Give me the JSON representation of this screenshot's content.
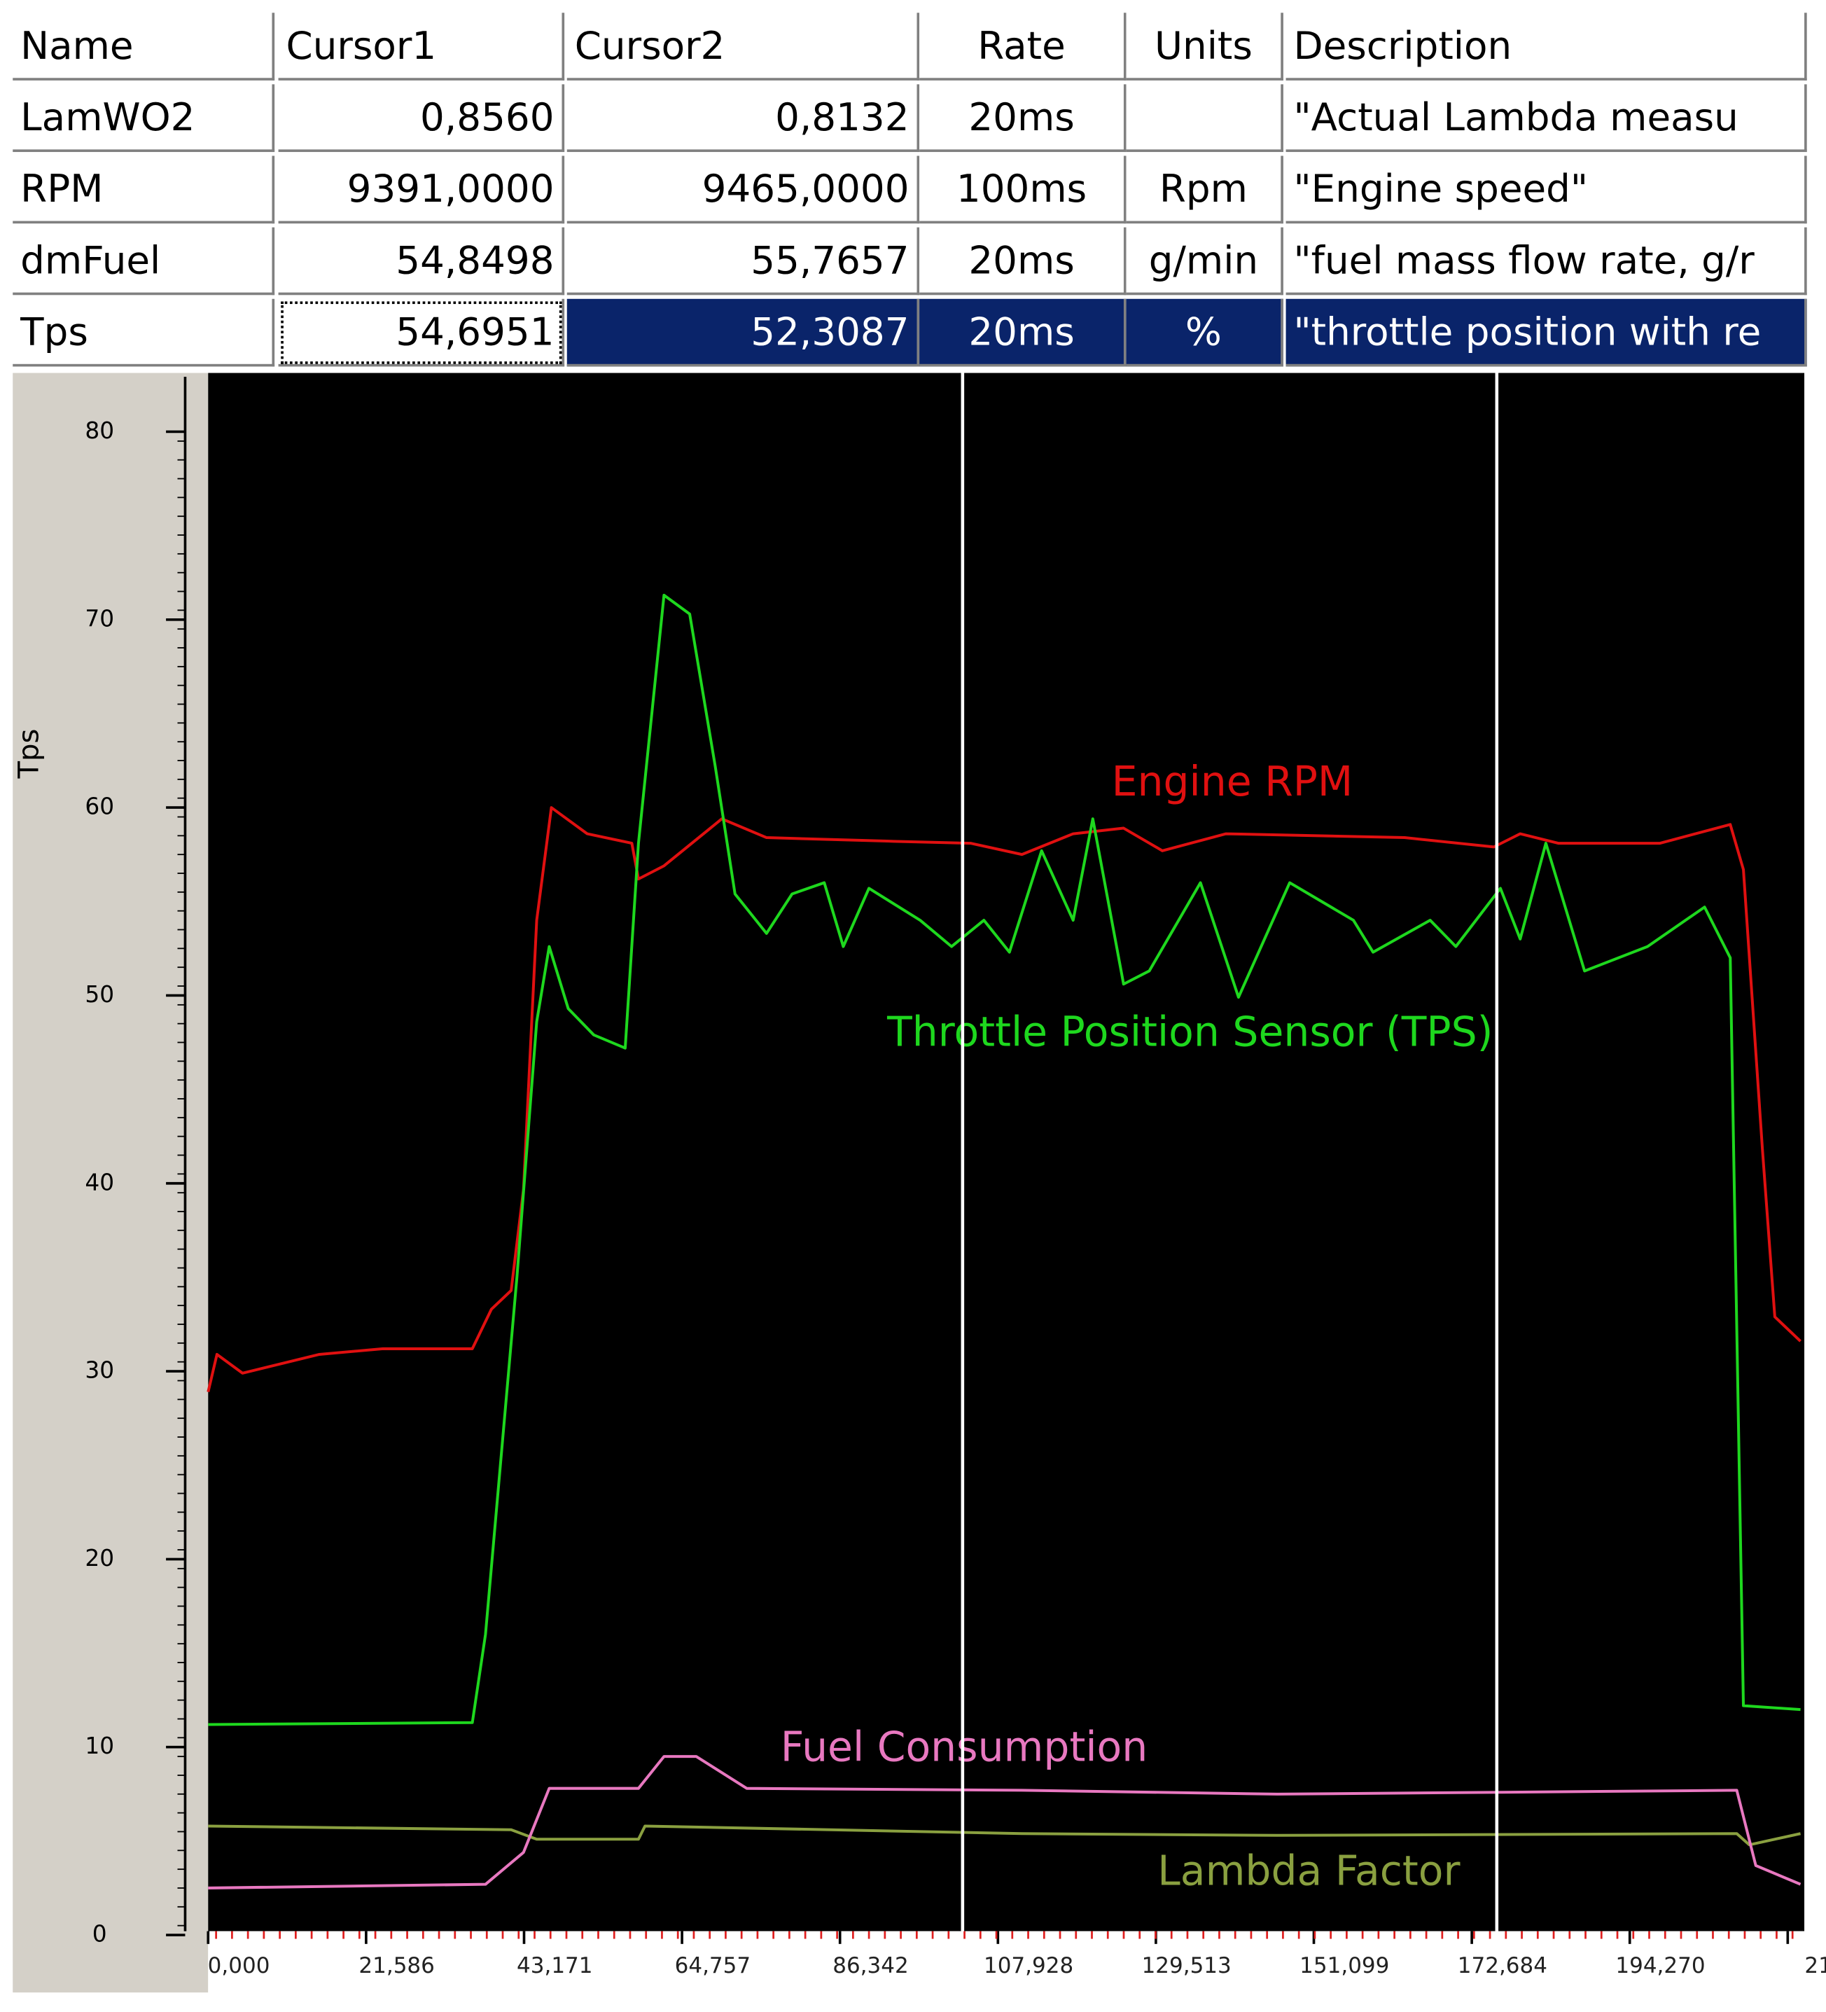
{
  "table": {
    "header": [
      "Name",
      "Cursor1",
      "Cursor2",
      "Rate",
      "Units",
      "Description"
    ],
    "rows": [
      [
        "LamWO2",
        "0,8560",
        "0,8132",
        "20ms",
        null,
        "\"Actual Lambda measu"
      ],
      [
        "RPM",
        "9391,0000",
        "9465,0000",
        "100ms",
        "Rpm",
        "\"Engine speed\""
      ],
      [
        "dmFuel",
        "54,8498",
        "55,7657",
        "20ms",
        "g/min",
        "\"fuel mass flow rate, g/r"
      ],
      [
        "Tps",
        "54,6951",
        "52,3087",
        "20ms",
        "%",
        "\"throttle position with re"
      ]
    ],
    "selected_row": 3
  },
  "chart_data": {
    "type": "line",
    "y_label": "Tps",
    "xlim": [
      0,
      217.6
    ],
    "ylim": [
      0,
      80
    ],
    "yticks": [
      0,
      10,
      20,
      30,
      40,
      50,
      60,
      70,
      80
    ],
    "xticks": [
      {
        "value": 0,
        "label": "0,000"
      },
      {
        "value": 21.586,
        "label": "21,586"
      },
      {
        "value": 43.171,
        "label": "43,171"
      },
      {
        "value": 64.757,
        "label": "64,757"
      },
      {
        "value": 86.342,
        "label": "86,342"
      },
      {
        "value": 107.928,
        "label": "107,928"
      },
      {
        "value": 129.513,
        "label": "129,513"
      },
      {
        "value": 151.099,
        "label": "151,099"
      },
      {
        "value": 172.684,
        "label": "172,684"
      },
      {
        "value": 194.27,
        "label": "194,270"
      },
      {
        "value": 215.855,
        "label": "21"
      }
    ],
    "cursors": [
      103.1,
      176.1
    ],
    "series": [
      {
        "name": "Engine RPM",
        "color": "#e01010",
        "x": [
          0,
          1.2,
          4.7,
          15.2,
          23.9,
          36.1,
          38.7,
          41.4,
          43.1,
          44.9,
          46.9,
          51.8,
          57.9,
          58.8,
          62.3,
          70.2,
          76.3,
          93.7,
          104.2,
          111.2,
          118.2,
          125.1,
          130.4,
          139.1,
          163.5,
          175.7,
          179.3,
          184.5,
          198.4,
          208.0,
          209.8,
          212.4,
          214.1,
          217.6
        ],
        "values": [
          28.9,
          30.9,
          29.9,
          30.9,
          31.2,
          31.2,
          33.3,
          34.3,
          39.7,
          54.0,
          60.0,
          58.6,
          58.1,
          56.2,
          56.9,
          59.4,
          58.4,
          58.2,
          58.1,
          57.5,
          58.6,
          58.9,
          57.7,
          58.6,
          58.4,
          57.9,
          58.6,
          58.1,
          58.1,
          59.1,
          56.7,
          41.8,
          32.9,
          31.6
        ]
      },
      {
        "name": "Throttle Position Sensor (TPS)",
        "color": "#1ed81e",
        "x": [
          0,
          36.1,
          37.9,
          42.2,
          44.9,
          46.6,
          49.2,
          52.7,
          57.0,
          58.8,
          62.3,
          65.8,
          69.3,
          72.0,
          76.3,
          79.8,
          84.2,
          86.8,
          90.3,
          97.3,
          101.6,
          106.0,
          109.5,
          113.9,
          118.2,
          120.9,
          125.1,
          128.6,
          135.6,
          140.8,
          147.8,
          156.5,
          159.2,
          167.0,
          170.5,
          176.6,
          179.3,
          182.8,
          188.1,
          196.7,
          204.5,
          208.0,
          209.8,
          217.6
        ],
        "values": [
          11.2,
          11.3,
          16.0,
          35.0,
          48.6,
          52.6,
          49.3,
          47.9,
          47.2,
          58.1,
          71.3,
          70.3,
          62.2,
          55.4,
          53.3,
          55.4,
          56.0,
          52.6,
          55.7,
          54.0,
          52.6,
          54.0,
          52.3,
          57.7,
          54.0,
          59.4,
          50.6,
          51.3,
          56.0,
          49.9,
          56.0,
          54.0,
          52.3,
          54.0,
          52.6,
          55.7,
          53.0,
          58.1,
          51.3,
          52.6,
          54.7,
          52.0,
          12.2,
          12.0
        ]
      },
      {
        "name": "Fuel Consumption",
        "color": "#e878c0",
        "x": [
          0,
          37.9,
          43.1,
          46.6,
          58.8,
          62.3,
          66.7,
          73.6,
          111.2,
          146.1,
          208.9,
          211.5,
          217.6
        ],
        "values": [
          2.5,
          2.7,
          4.4,
          7.8,
          7.8,
          9.5,
          9.5,
          7.8,
          7.7,
          7.5,
          7.7,
          3.7,
          2.7
        ]
      },
      {
        "name": "Lambda Factor",
        "color": "#8aa040",
        "x": [
          0,
          41.4,
          44.9,
          58.8,
          59.7,
          111.2,
          146.1,
          208.9,
          210.6,
          217.6
        ],
        "values": [
          5.8,
          5.6,
          5.1,
          5.1,
          5.8,
          5.4,
          5.3,
          5.4,
          4.8,
          5.4
        ]
      }
    ]
  }
}
